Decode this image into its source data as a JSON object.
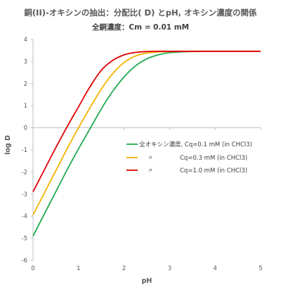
{
  "chart_data": {
    "type": "line",
    "title": "銅(II)-オキシンの抽出：分配比( D) とpH, オキシン濃度の関係",
    "subtitle": "全銅濃度：Cm = 0.01 mM",
    "xlabel": "pH",
    "ylabel": "log D",
    "xlim": [
      0,
      5
    ],
    "ylim": [
      -6,
      4
    ],
    "x_ticks": [
      0,
      1,
      2,
      3,
      4,
      5
    ],
    "y_ticks": [
      4,
      3,
      2,
      1,
      0,
      -1,
      -2,
      -3,
      -4,
      -5,
      -6
    ],
    "grid": false,
    "legend_position": "center-right",
    "series": [
      {
        "name": "全オキシン濃度, Cq=0.1 mM (in CHCl3)",
        "legend_prefix": "全オキシン濃度,",
        "legend_label": "Cq=0.1 mM (in CHCl3)",
        "color": "#1faa4f",
        "x": [
          0,
          0.25,
          0.5,
          0.75,
          1.0,
          1.25,
          1.5,
          1.75,
          2.0,
          2.25,
          2.5,
          2.75,
          3.0,
          3.5,
          4.0,
          4.5,
          5.0
        ],
        "y": [
          -4.9,
          -3.9,
          -2.9,
          -1.9,
          -0.95,
          -0.05,
          0.85,
          1.65,
          2.3,
          2.8,
          3.12,
          3.3,
          3.4,
          3.45,
          3.46,
          3.46,
          3.46
        ]
      },
      {
        "name": "〃 Cq=0.3 mM (in CHCl3)",
        "legend_prefix": "〃",
        "legend_label": "Cq=0.3 mM (in CHCl3)",
        "color": "#f0b400",
        "x": [
          0,
          0.25,
          0.5,
          0.75,
          1.0,
          1.25,
          1.5,
          1.75,
          2.0,
          2.25,
          2.5,
          2.75,
          3.0,
          3.5,
          4.0,
          4.5,
          5.0
        ],
        "y": [
          -3.95,
          -2.95,
          -1.95,
          -0.95,
          0.0,
          0.9,
          1.75,
          2.45,
          2.95,
          3.25,
          3.38,
          3.43,
          3.45,
          3.46,
          3.46,
          3.46,
          3.46
        ]
      },
      {
        "name": "〃 Cq=1.0 mM (in CHCl3)",
        "legend_prefix": "〃",
        "legend_label": "Cq=1.0 mM (in CHCl3)",
        "color": "#e00000",
        "x": [
          0,
          0.25,
          0.5,
          0.75,
          1.0,
          1.25,
          1.5,
          1.75,
          2.0,
          2.25,
          2.5,
          2.75,
          3.0,
          3.5,
          4.0,
          4.5,
          5.0
        ],
        "y": [
          -2.9,
          -1.9,
          -0.9,
          0.05,
          0.95,
          1.85,
          2.6,
          3.05,
          3.3,
          3.41,
          3.45,
          3.46,
          3.46,
          3.46,
          3.46,
          3.46,
          3.46
        ]
      }
    ]
  }
}
